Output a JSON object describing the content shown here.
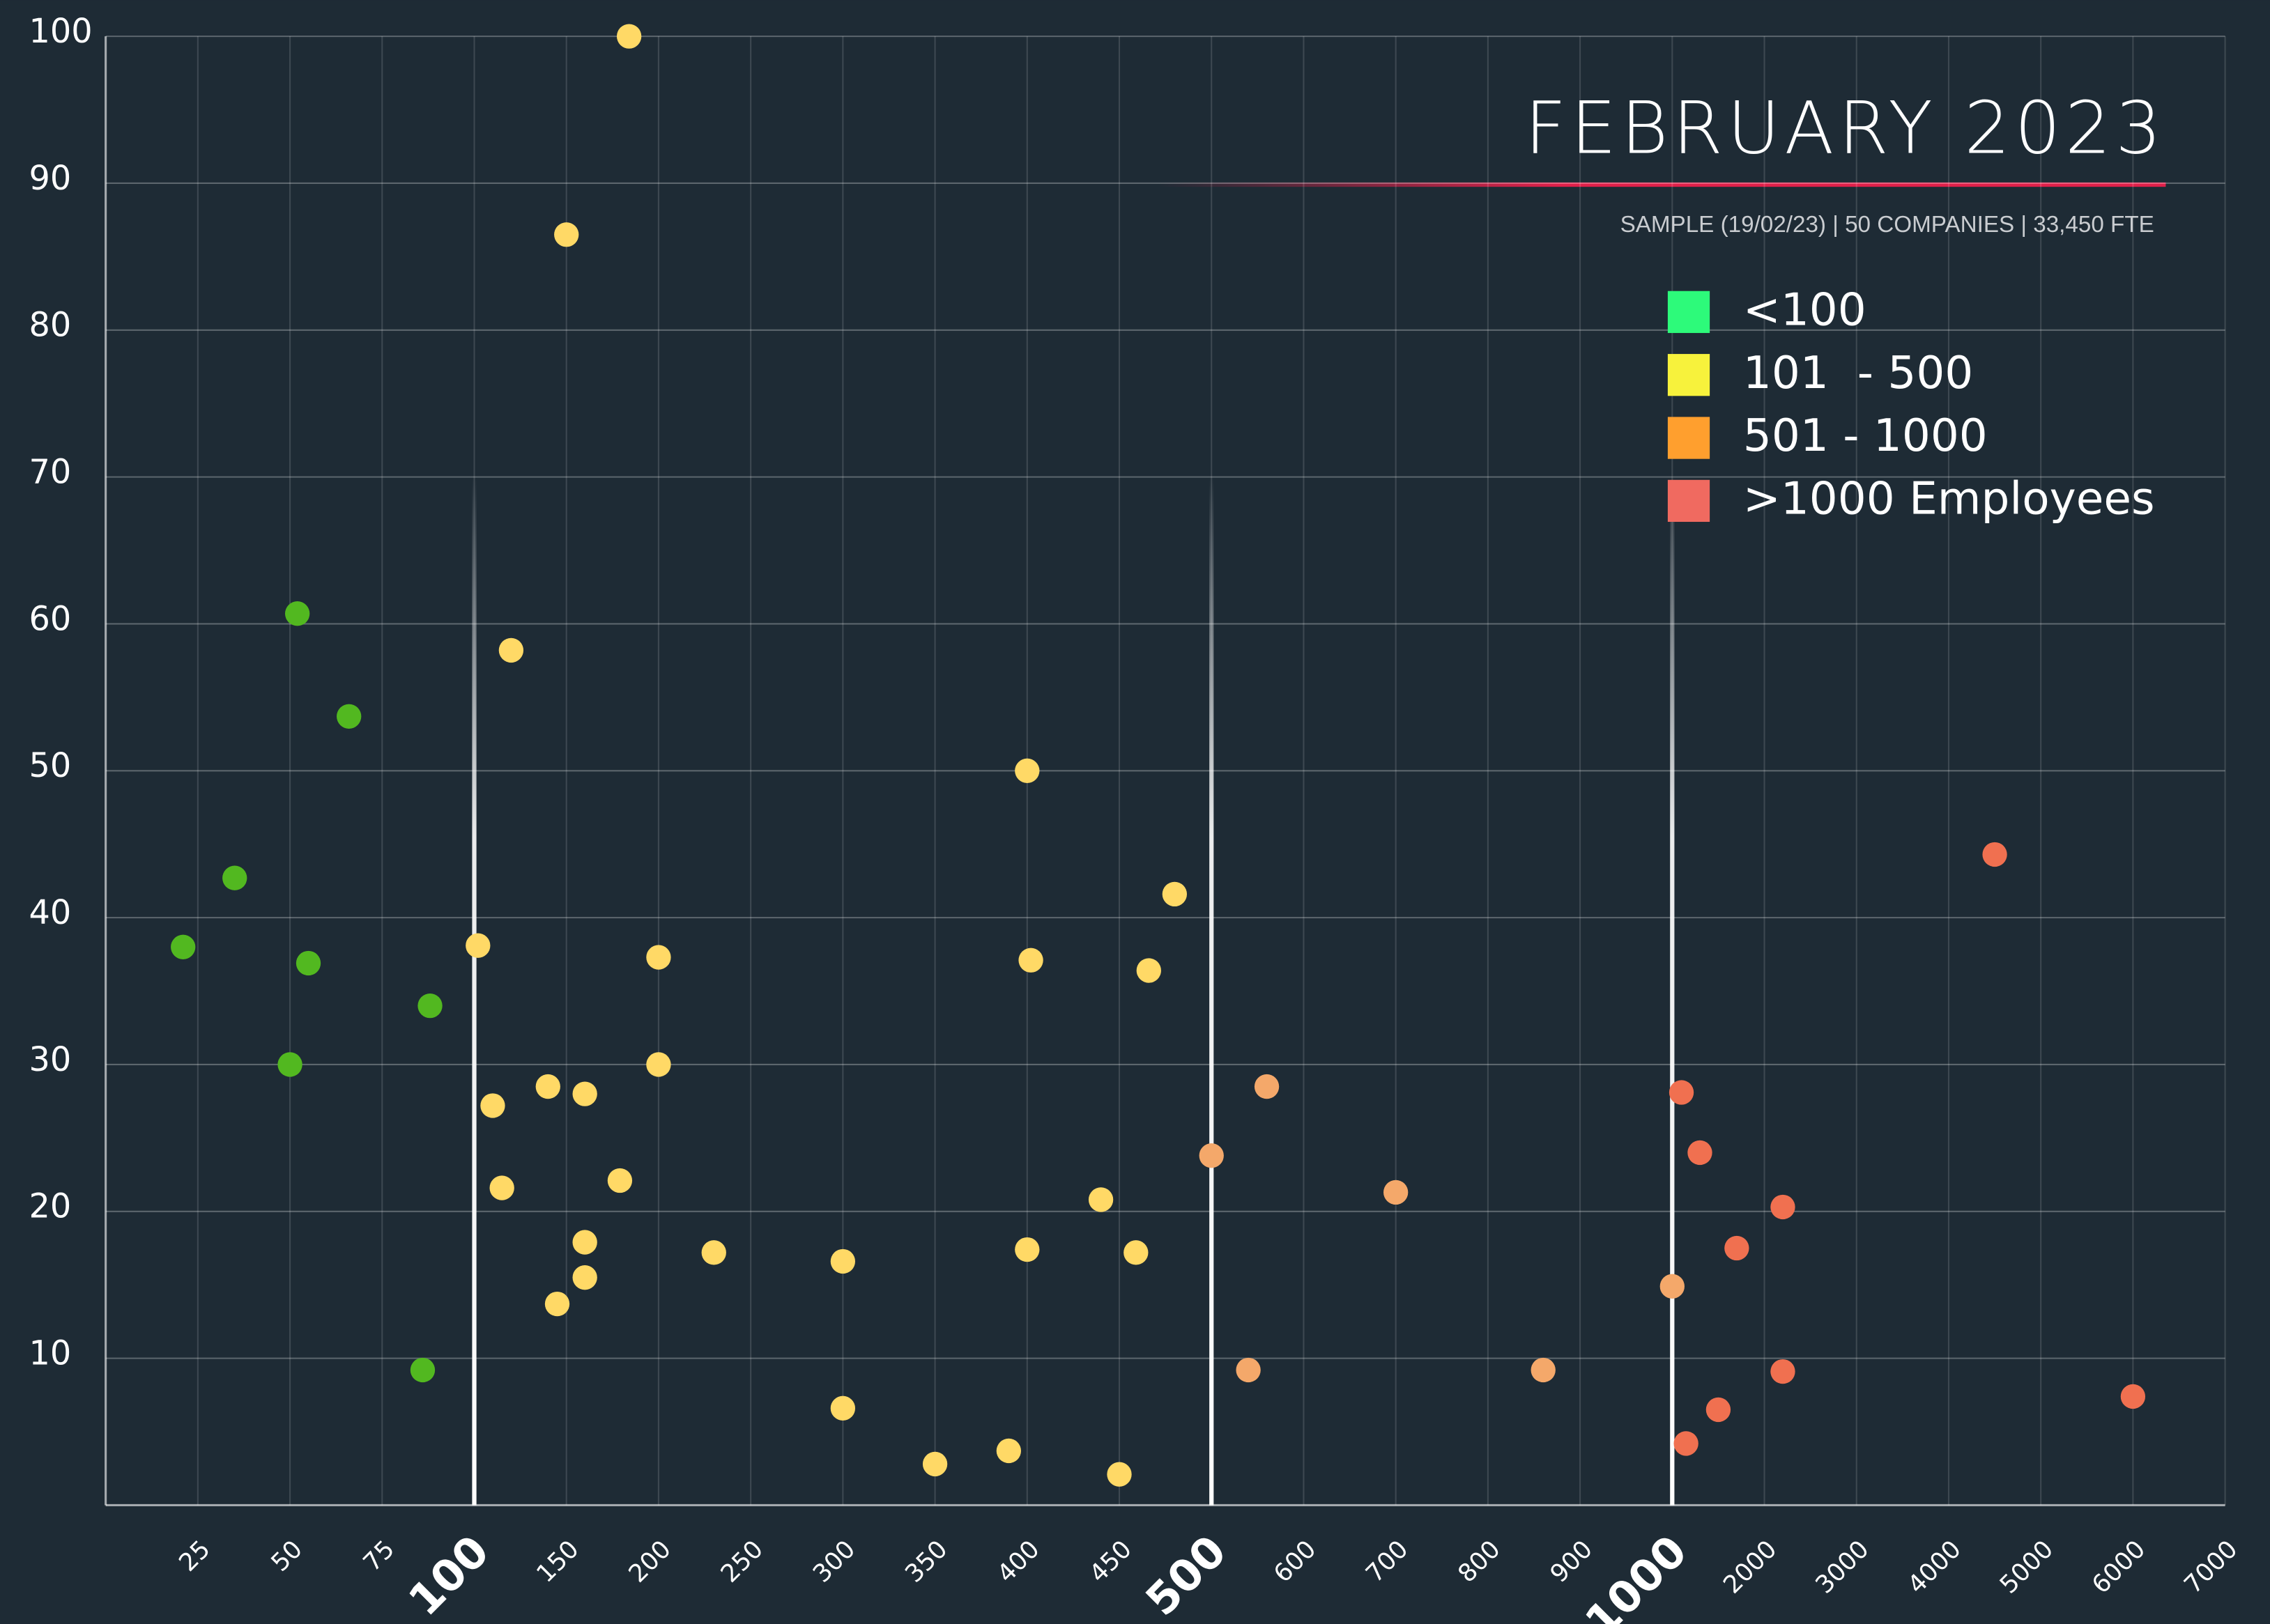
{
  "chart_data": {
    "type": "scatter",
    "title": "FEBRUARY 2023",
    "subtitle": "SAMPLE (19/02/23) | 50 COMPANIES | 33,450 FTE",
    "xlim": [
      0,
      7000
    ],
    "xticks": [
      25,
      50,
      75,
      100,
      150,
      200,
      250,
      300,
      350,
      400,
      450,
      500,
      600,
      700,
      800,
      900,
      1000,
      2000,
      3000,
      4000,
      5000,
      6000,
      7000
    ],
    "emphasized_xticks": [
      100,
      500,
      1000
    ],
    "ylim": [
      0,
      100
    ],
    "yticks": [
      10,
      20,
      30,
      40,
      50,
      60,
      70,
      80,
      90,
      100
    ],
    "grid": true,
    "legend": "upper right",
    "series": [
      {
        "name": "<100",
        "color": "#52b820",
        "legend_color": "#2dfa7a",
        "x": [
          21,
          35,
          52,
          66,
          55,
          50,
          88,
          86
        ],
        "y": [
          38,
          42.7,
          60.7,
          53.7,
          36.9,
          30,
          34,
          9.2
        ]
      },
      {
        "name": "101  - 500",
        "color": "#ffd966",
        "legend_color": "#f7f23c",
        "x": [
          184,
          150,
          120,
          102,
          200,
          200,
          110,
          140,
          160,
          115,
          179,
          160,
          160,
          145,
          230,
          300,
          300,
          350,
          390,
          450,
          400,
          402,
          480,
          466,
          440,
          400,
          459
        ],
        "y": [
          100,
          86.5,
          58.2,
          38.1,
          37.3,
          30,
          27.2,
          28.5,
          28,
          21.6,
          22.1,
          17.9,
          15.5,
          13.7,
          17.2,
          16.6,
          6.6,
          2.8,
          3.7,
          2.1,
          50,
          37.1,
          41.6,
          36.4,
          20.8,
          17.4,
          17.2
        ]
      },
      {
        "name": "501 - 1000",
        "color": "#f4a86a",
        "legend_color": "#ff9f2e",
        "x": [
          500,
          560,
          700,
          540,
          860,
          1000
        ],
        "y": [
          23.8,
          28.5,
          21.3,
          9.2,
          9.2,
          14.9
        ]
      },
      {
        "name": ">1000 Employees",
        "color": "#f07050",
        "legend_color": "#f06a60",
        "x": [
          1100,
          1300,
          2200,
          1700,
          2200,
          1500,
          1150,
          4500,
          6000
        ],
        "y": [
          28.1,
          24,
          20.3,
          17.5,
          9.1,
          6.5,
          4.2,
          44.3,
          7.4
        ]
      }
    ]
  }
}
